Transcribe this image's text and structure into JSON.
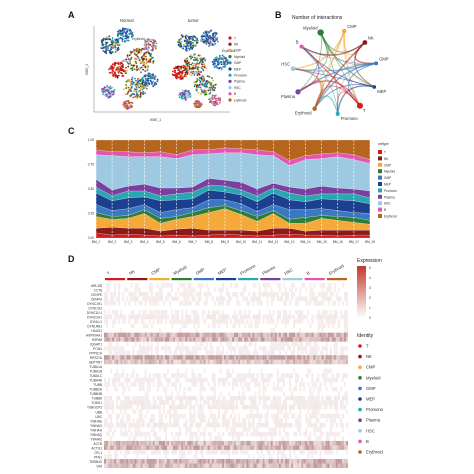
{
  "panels": {
    "a": {
      "letter": "A",
      "titles": [
        "Normal",
        "tumor"
      ],
      "xlabel": "tSNE_1",
      "ylabel": "tSNE_2"
    },
    "b": {
      "letter": "B",
      "title": "Number of interactions"
    },
    "c": {
      "letter": "C",
      "legend_title": "celltype"
    },
    "d": {
      "letter": "D",
      "expr_title": "Expression",
      "identity_title": "Identity"
    }
  },
  "celltypes": [
    {
      "name": "T",
      "color": "#d7191c"
    },
    {
      "name": "NK",
      "color": "#8b1a1a"
    },
    {
      "name": "CMP",
      "color": "#f4a93a"
    },
    {
      "name": "Myeloid",
      "color": "#2e7d32"
    },
    {
      "name": "GMP",
      "color": "#3a78c2"
    },
    {
      "name": "MEP",
      "color": "#1d3f8f"
    },
    {
      "name": "Promono",
      "color": "#2aa6b0"
    },
    {
      "name": "Plasma",
      "color": "#7b3fa0"
    },
    {
      "name": "HSC",
      "color": "#9ecae1"
    },
    {
      "name": "B",
      "color": "#e056b0"
    },
    {
      "name": "Erythroid",
      "color": "#b5651d"
    }
  ],
  "legend_a": [
    "T",
    "NK",
    "CMP",
    "Myeloid",
    "GMP",
    "MEP",
    "Promono",
    "Plasma",
    "HSC",
    "B",
    "erythroid"
  ],
  "network_nodes": [
    "Myeloid",
    "CMP",
    "NK",
    "GMP",
    "MEP",
    "T",
    "Promono",
    "Erythroid",
    "Plasma",
    "HSC",
    "B"
  ],
  "cluster_labels_a": [
    "Erythroid",
    "HSC",
    "CMP",
    "Myeloid",
    "CMP",
    "Erythroid"
  ],
  "heatmap_header": [
    "T",
    "NK",
    "CMP",
    "Myeloid",
    "GMP",
    "MEP",
    "Promono",
    "Plasma",
    "HSC",
    "B",
    "Erythroid"
  ],
  "expression_ticks": [
    "5",
    "4",
    "3",
    "2",
    "1",
    "0"
  ],
  "genes": [
    "ARL3/B",
    "CCT8",
    "CENPE",
    "CENPH",
    "DYNC1H1",
    "DYNC1I2",
    "DYNC1LI1",
    "DYNC2H1",
    "DYNLL1",
    "DYNLRB1",
    "HAUS1",
    "HSP90AA1",
    "HSPA8",
    "IQGAP1",
    "PCM1",
    "PPP2CA",
    "RPS27A",
    "SEPTIN7",
    "TUBA1A",
    "TUBA1B",
    "TUBA1C",
    "TUBA4A",
    "TUBB",
    "TUBB2A",
    "TUBB4B",
    "TUBB6",
    "TUBG1",
    "TUBGCP2",
    "UBB",
    "UBC",
    "YWHAE",
    "YWHAG",
    "YWHAH",
    "YWHAQ",
    "YWHAZ",
    "ACTB",
    "ACTG1",
    "CFL1",
    "PFN1",
    "TMSB4X",
    "VIM"
  ],
  "chart_c_xlabels": [
    "BM_1",
    "BM_2",
    "BM_3",
    "BM_4",
    "BM_5",
    "BM_6",
    "BM_7",
    "BM_8",
    "BM_9",
    "BM_10",
    "BM_11",
    "BM_12",
    "BM_13",
    "BM_14",
    "BM_15",
    "BM_16",
    "BM_17",
    "BM_18"
  ],
  "chart_c_yticks": [
    "1.00",
    "0.75",
    "0.50",
    "0.25",
    "0.00"
  ],
  "chart_data": {
    "type": "area",
    "xlabel": "",
    "ylabel": "",
    "ylim": [
      0,
      1
    ],
    "categories": [
      "BM_1",
      "BM_2",
      "BM_3",
      "BM_4",
      "BM_5",
      "BM_6",
      "BM_7",
      "BM_8",
      "BM_9",
      "BM_10",
      "BM_11",
      "BM_12",
      "BM_13",
      "BM_14",
      "BM_15",
      "BM_16",
      "BM_17",
      "BM_18"
    ],
    "series": [
      {
        "name": "T",
        "values": [
          0.05,
          0.03,
          0.04,
          0.03,
          0.02,
          0.03,
          0.02,
          0.03,
          0.04,
          0.03,
          0.02,
          0.03,
          0.04,
          0.03,
          0.03,
          0.02,
          0.03,
          0.03
        ]
      },
      {
        "name": "NK",
        "values": [
          0.05,
          0.08,
          0.06,
          0.07,
          0.05,
          0.06,
          0.08,
          0.05,
          0.04,
          0.05,
          0.05,
          0.07,
          0.06,
          0.04,
          0.05,
          0.06,
          0.05,
          0.05
        ]
      },
      {
        "name": "CMP",
        "values": [
          0.12,
          0.08,
          0.1,
          0.15,
          0.08,
          0.1,
          0.12,
          0.18,
          0.22,
          0.16,
          0.1,
          0.15,
          0.05,
          0.08,
          0.12,
          0.1,
          0.08,
          0.06
        ]
      },
      {
        "name": "Myeloid",
        "values": [
          0.04,
          0.03,
          0.03,
          0.04,
          0.05,
          0.03,
          0.04,
          0.05,
          0.03,
          0.04,
          0.05,
          0.03,
          0.04,
          0.06,
          0.03,
          0.04,
          0.05,
          0.04
        ]
      },
      {
        "name": "GMP",
        "values": [
          0.08,
          0.06,
          0.07,
          0.05,
          0.06,
          0.07,
          0.05,
          0.08,
          0.06,
          0.07,
          0.05,
          0.06,
          0.1,
          0.08,
          0.07,
          0.06,
          0.05,
          0.07
        ]
      },
      {
        "name": "MEP",
        "values": [
          0.12,
          0.1,
          0.11,
          0.08,
          0.12,
          0.1,
          0.09,
          0.1,
          0.08,
          0.09,
          0.1,
          0.12,
          0.1,
          0.08,
          0.1,
          0.11,
          0.12,
          0.1
        ]
      },
      {
        "name": "Promono",
        "values": [
          0.06,
          0.05,
          0.07,
          0.06,
          0.05,
          0.06,
          0.07,
          0.05,
          0.06,
          0.05,
          0.06,
          0.05,
          0.07,
          0.06,
          0.05,
          0.06,
          0.07,
          0.06
        ]
      },
      {
        "name": "Plasma",
        "values": [
          0.08,
          0.06,
          0.05,
          0.07,
          0.08,
          0.06,
          0.05,
          0.07,
          0.06,
          0.08,
          0.07,
          0.05,
          0.06,
          0.07,
          0.08,
          0.06,
          0.05,
          0.07
        ]
      },
      {
        "name": "HSC",
        "values": [
          0.25,
          0.35,
          0.3,
          0.28,
          0.32,
          0.3,
          0.33,
          0.25,
          0.28,
          0.3,
          0.35,
          0.28,
          0.22,
          0.3,
          0.28,
          0.32,
          0.3,
          0.28
        ]
      },
      {
        "name": "B",
        "values": [
          0.05,
          0.04,
          0.05,
          0.04,
          0.05,
          0.04,
          0.05,
          0.04,
          0.05,
          0.04,
          0.05,
          0.04,
          0.05,
          0.04,
          0.05,
          0.04,
          0.05,
          0.04
        ]
      },
      {
        "name": "Erythroid",
        "values": [
          0.1,
          0.12,
          0.12,
          0.13,
          0.12,
          0.15,
          0.1,
          0.1,
          0.08,
          0.09,
          0.1,
          0.12,
          0.21,
          0.16,
          0.14,
          0.13,
          0.15,
          0.2
        ]
      }
    ]
  }
}
